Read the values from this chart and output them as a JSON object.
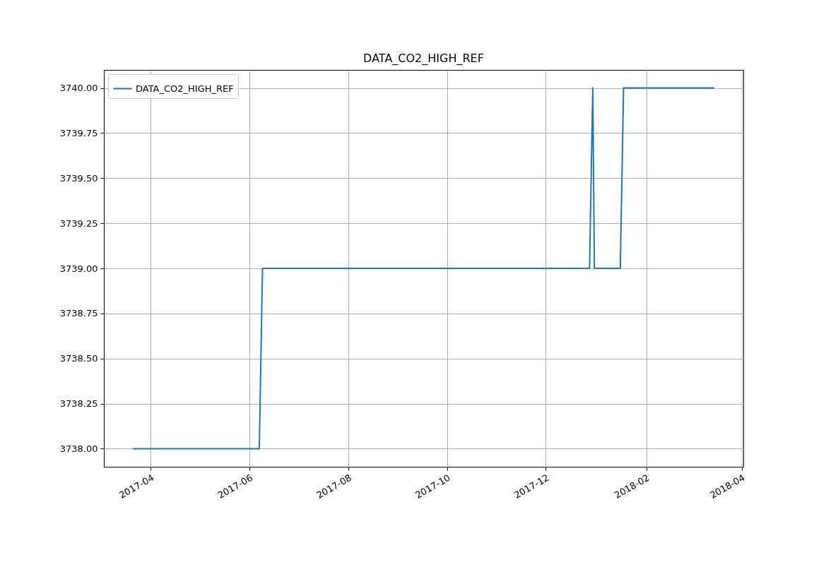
{
  "chart_data": {
    "type": "line",
    "title": "DATA_CO2_HIGH_REF",
    "x": [
      "2017-03-21",
      "2017-06-07",
      "2017-06-09",
      "2017-12-28",
      "2017-12-30",
      "2017-12-31",
      "2018-01-16",
      "2018-01-18",
      "2018-03-15"
    ],
    "series": [
      {
        "name": "DATA_CO2_HIGH_REF",
        "color": "#1f77b4",
        "values": [
          3738,
          3738,
          3739,
          3739,
          3740,
          3739,
          3739,
          3740,
          3740
        ]
      }
    ],
    "xlim": [
      "2017-03-03",
      "2018-04-02"
    ],
    "ylim": [
      3737.9,
      3740.1
    ],
    "xticks": [
      "2017-04",
      "2017-06",
      "2017-08",
      "2017-10",
      "2017-12",
      "2018-02",
      "2018-04"
    ],
    "yticks": [
      {
        "value": 3738,
        "label": "3738.00"
      },
      {
        "value": 3738.25,
        "label": "3738.25"
      },
      {
        "value": 3738.5,
        "label": "3738.50"
      },
      {
        "value": 3738.75,
        "label": "3738.75"
      },
      {
        "value": 3739,
        "label": "3739.00"
      },
      {
        "value": 3739.25,
        "label": "3739.25"
      },
      {
        "value": 3739.5,
        "label": "3739.50"
      },
      {
        "value": 3739.75,
        "label": "3739.75"
      },
      {
        "value": 3740,
        "label": "3740.00"
      }
    ],
    "grid": true,
    "legend": "top left"
  }
}
